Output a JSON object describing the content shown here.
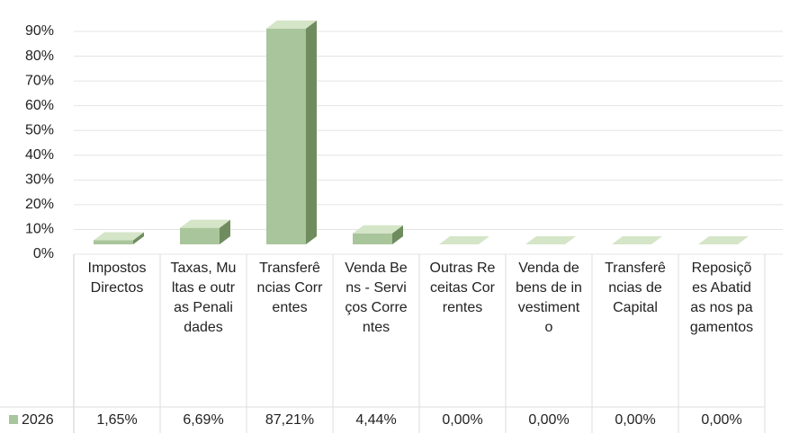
{
  "chart_data": {
    "type": "bar3d",
    "categories": [
      "Impostos Directos",
      "Taxas, Multas e outras Penalidades",
      "Transferências Correntes",
      "Venda Bens - Serviços Correntes",
      "Outras Receitas Correntes",
      "Venda de bens de investimento",
      "Transferências de Capital",
      "Reposições Abatidas nos pagamentos"
    ],
    "series": [
      {
        "name": "2026",
        "color": "#a9c59b",
        "values": [
          1.65,
          6.69,
          87.21,
          4.44,
          0,
          0,
          0,
          0
        ],
        "value_labels": [
          "1,65%",
          "6,69%",
          "87,21%",
          "4,44%",
          "0,00%",
          "0,00%",
          "0,00%",
          "0,00%"
        ]
      }
    ],
    "ylim": [
      0,
      90
    ],
    "yticks": [
      {
        "value": 0,
        "label": "0%"
      },
      {
        "value": 10,
        "label": "10%"
      },
      {
        "value": 20,
        "label": "20%"
      },
      {
        "value": 30,
        "label": "30%"
      },
      {
        "value": 40,
        "label": "40%"
      },
      {
        "value": 50,
        "label": "50%"
      },
      {
        "value": 60,
        "label": "60%"
      },
      {
        "value": 70,
        "label": "70%"
      },
      {
        "value": 80,
        "label": "80%"
      },
      {
        "value": 90,
        "label": "90%"
      }
    ],
    "grid": true
  }
}
